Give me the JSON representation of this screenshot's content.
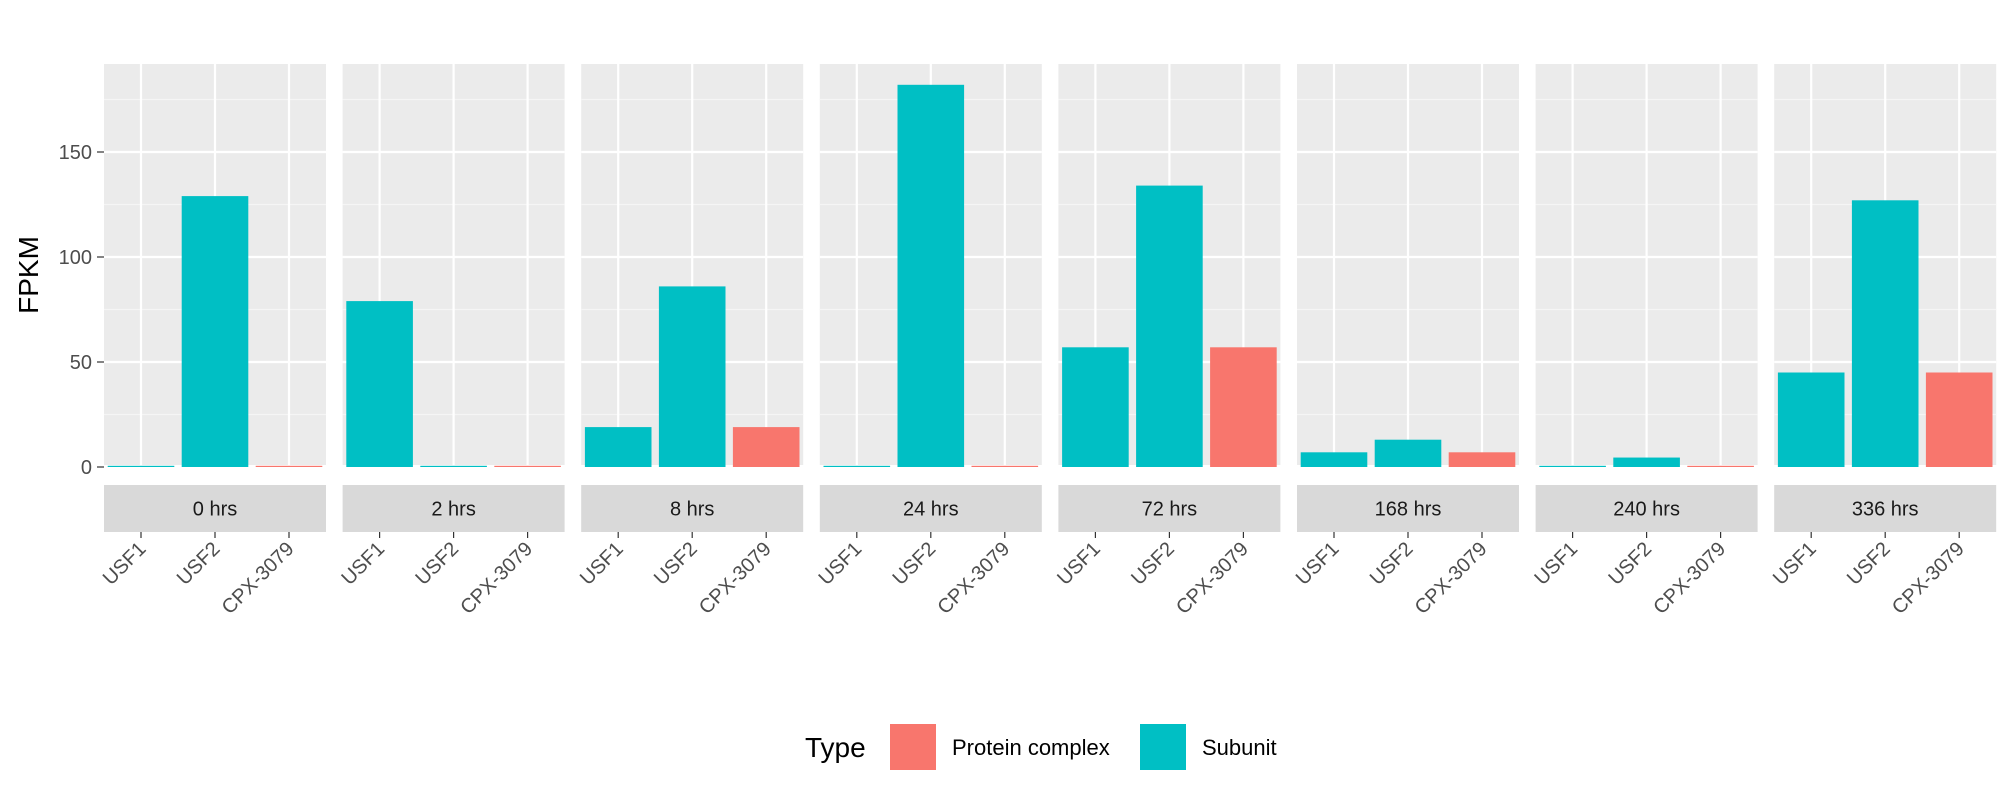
{
  "chart_data": {
    "type": "bar",
    "ylabel": "FPKM",
    "ylim": [
      0,
      190
    ],
    "yticks": [
      0,
      50,
      100,
      150
    ],
    "grid": true,
    "legend": {
      "title": "Type",
      "position": "bottom",
      "entries": [
        {
          "label": "Protein complex",
          "color": "#F8766D"
        },
        {
          "label": "Subunit",
          "color": "#00BFC4"
        }
      ]
    },
    "categories": [
      "USF1",
      "USF2",
      "CPX-3079"
    ],
    "category_types": [
      "Subunit",
      "Subunit",
      "Protein complex"
    ],
    "facets": [
      {
        "label": "0 hrs",
        "values": [
          0.5,
          129,
          0.5
        ]
      },
      {
        "label": "2 hrs",
        "values": [
          79,
          0.5,
          0.5
        ]
      },
      {
        "label": "8 hrs",
        "values": [
          19,
          86,
          19
        ]
      },
      {
        "label": "24 hrs",
        "values": [
          0.3,
          182,
          0.3
        ]
      },
      {
        "label": "72 hrs",
        "values": [
          57,
          134,
          57
        ]
      },
      {
        "label": "168 hrs",
        "values": [
          7,
          13,
          7
        ]
      },
      {
        "label": "240 hrs",
        "values": [
          0.5,
          4.5,
          0.5
        ]
      },
      {
        "label": "336 hrs",
        "values": [
          45,
          127,
          45
        ]
      }
    ]
  }
}
